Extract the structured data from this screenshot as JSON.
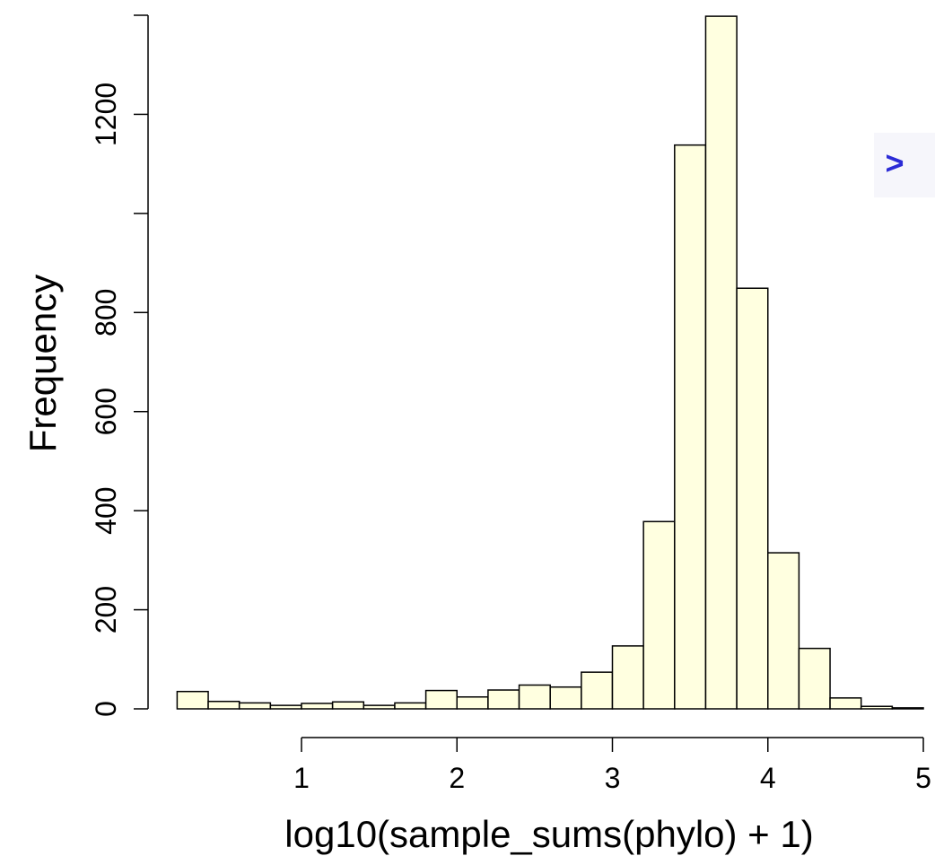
{
  "chart_data": {
    "type": "bar",
    "subtype": "histogram",
    "bins": [
      {
        "x0": 0.2,
        "x1": 0.4,
        "count": 35
      },
      {
        "x0": 0.4,
        "x1": 0.6,
        "count": 15
      },
      {
        "x0": 0.6,
        "x1": 0.8,
        "count": 12
      },
      {
        "x0": 0.8,
        "x1": 1.0,
        "count": 7
      },
      {
        "x0": 1.0,
        "x1": 1.2,
        "count": 11
      },
      {
        "x0": 1.2,
        "x1": 1.4,
        "count": 14
      },
      {
        "x0": 1.4,
        "x1": 1.6,
        "count": 7
      },
      {
        "x0": 1.6,
        "x1": 1.8,
        "count": 12
      },
      {
        "x0": 1.8,
        "x1": 2.0,
        "count": 37
      },
      {
        "x0": 2.0,
        "x1": 2.2,
        "count": 24
      },
      {
        "x0": 2.2,
        "x1": 2.4,
        "count": 38
      },
      {
        "x0": 2.4,
        "x1": 2.6,
        "count": 48
      },
      {
        "x0": 2.6,
        "x1": 2.8,
        "count": 44
      },
      {
        "x0": 2.8,
        "x1": 3.0,
        "count": 74
      },
      {
        "x0": 3.0,
        "x1": 3.2,
        "count": 127
      },
      {
        "x0": 3.2,
        "x1": 3.4,
        "count": 378
      },
      {
        "x0": 3.4,
        "x1": 3.6,
        "count": 1138
      },
      {
        "x0": 3.6,
        "x1": 3.8,
        "count": 1398
      },
      {
        "x0": 3.8,
        "x1": 4.0,
        "count": 849
      },
      {
        "x0": 4.0,
        "x1": 4.2,
        "count": 315
      },
      {
        "x0": 4.2,
        "x1": 4.4,
        "count": 122
      },
      {
        "x0": 4.4,
        "x1": 4.6,
        "count": 22
      },
      {
        "x0": 4.6,
        "x1": 4.8,
        "count": 5
      },
      {
        "x0": 4.8,
        "x1": 5.0,
        "count": 2
      }
    ],
    "title": "",
    "xlabel": "log10(sample_sums(phylo) + 1)",
    "ylabel": "Frequency",
    "xlim": [
      0.2,
      5.0
    ],
    "ylim": [
      0,
      1400
    ],
    "x_axis_range": [
      1,
      5
    ],
    "x_ticks": [
      "1",
      "2",
      "3",
      "4",
      "5"
    ],
    "y_ticks": [
      0,
      200,
      400,
      600,
      800,
      1000,
      1200,
      1400
    ],
    "y_tick_labels": [
      "0",
      "200",
      "400",
      "600",
      "800",
      "",
      "1200",
      ""
    ],
    "bar_fill": "#ffffe0",
    "bar_stroke": "#000000",
    "grid": false,
    "legend": "none"
  },
  "console": {
    "prompt_symbol": ">",
    "prompt_color": "#2b2bd6"
  }
}
